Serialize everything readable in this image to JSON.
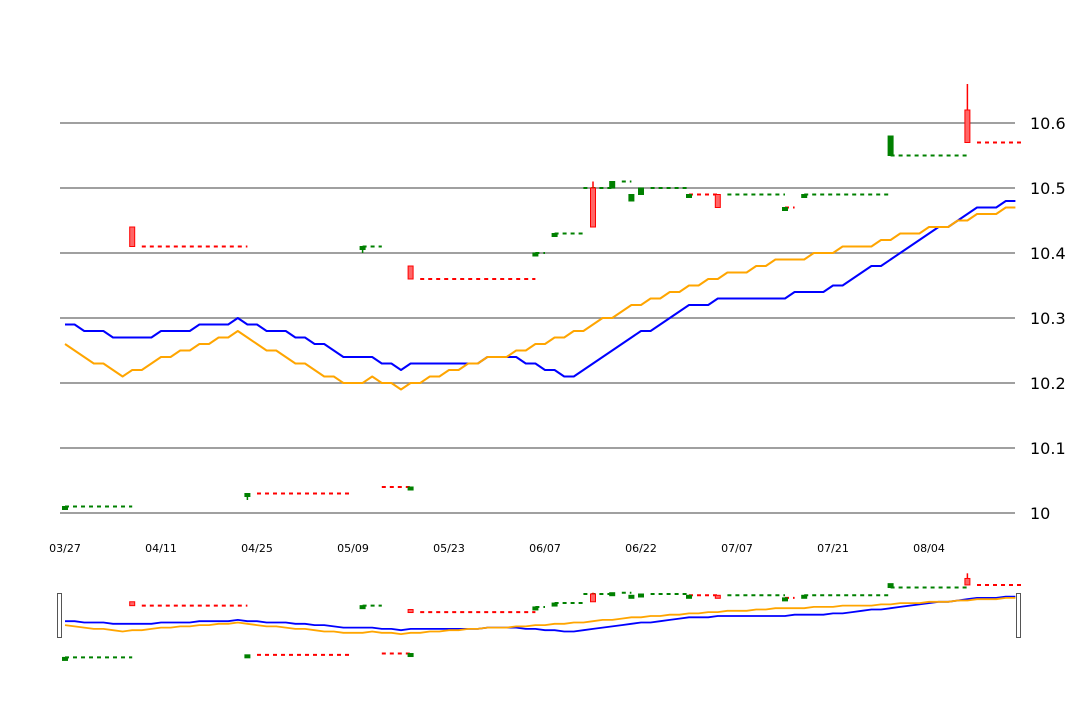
{
  "chart_data": {
    "type": "candlestick",
    "title": "",
    "xlabel": "",
    "ylabel": "",
    "ylim": [
      10.0,
      10.6
    ],
    "y_ticks": [
      "10",
      "10.1",
      "10.2",
      "10.3",
      "10.4",
      "10.5",
      "10.6"
    ],
    "y_tick_values": [
      10.0,
      10.1,
      10.2,
      10.3,
      10.4,
      10.5,
      10.6
    ],
    "x_tick_labels": [
      "03/27",
      "04/11",
      "04/25",
      "05/09",
      "05/23",
      "06/07",
      "06/22",
      "07/07",
      "07/21",
      "08/04"
    ],
    "x_tick_index": [
      0,
      10,
      20,
      30,
      40,
      50,
      60,
      70,
      80,
      90
    ],
    "n_days": 100,
    "grid": true,
    "colors": {
      "grid": "#808080",
      "up": "#008000",
      "down": "#ff0000",
      "ma_short": "#0000ff",
      "ma_long": "#ffa500",
      "navigator_border": "#555555"
    },
    "candles": [
      {
        "i": 0,
        "open": 10.01,
        "close": 10.01,
        "high": 10.01,
        "low": 10.01
      },
      {
        "i": 7,
        "open": 10.44,
        "close": 10.41,
        "high": 10.44,
        "low": 10.41
      },
      {
        "i": 19,
        "open": 10.03,
        "close": 10.03,
        "high": 10.03,
        "low": 10.02
      },
      {
        "i": 31,
        "open": 10.41,
        "close": 10.41,
        "high": 10.41,
        "low": 10.4
      },
      {
        "i": 36,
        "open": 10.04,
        "close": 10.04,
        "high": 10.04,
        "low": 10.04
      },
      {
        "i": 36,
        "open": 10.38,
        "close": 10.36,
        "high": 10.38,
        "low": 10.36
      },
      {
        "i": 49,
        "open": 10.4,
        "close": 10.4,
        "high": 10.4,
        "low": 10.4
      },
      {
        "i": 51,
        "open": 10.43,
        "close": 10.43,
        "high": 10.43,
        "low": 10.43
      },
      {
        "i": 55,
        "open": 10.5,
        "close": 10.44,
        "high": 10.51,
        "low": 10.44
      },
      {
        "i": 57,
        "open": 10.5,
        "close": 10.51,
        "high": 10.51,
        "low": 10.5
      },
      {
        "i": 59,
        "open": 10.48,
        "close": 10.49,
        "high": 10.49,
        "low": 10.48
      },
      {
        "i": 60,
        "open": 10.49,
        "close": 10.5,
        "high": 10.5,
        "low": 10.49
      },
      {
        "i": 65,
        "open": 10.49,
        "close": 10.49,
        "high": 10.49,
        "low": 10.49
      },
      {
        "i": 68,
        "open": 10.49,
        "close": 10.47,
        "high": 10.49,
        "low": 10.47
      },
      {
        "i": 75,
        "open": 10.47,
        "close": 10.47,
        "high": 10.47,
        "low": 10.47
      },
      {
        "i": 77,
        "open": 10.49,
        "close": 10.49,
        "high": 10.49,
        "low": 10.49
      },
      {
        "i": 86,
        "open": 10.55,
        "close": 10.58,
        "high": 10.58,
        "low": 10.55
      },
      {
        "i": 94,
        "open": 10.62,
        "close": 10.57,
        "high": 10.66,
        "low": 10.57
      }
    ],
    "dashed_levels": [
      {
        "from": 0,
        "to": 7,
        "value": 10.01,
        "color": "up"
      },
      {
        "from": 8,
        "to": 19,
        "value": 10.41,
        "color": "down"
      },
      {
        "from": 20,
        "to": 30,
        "value": 10.03,
        "color": "down"
      },
      {
        "from": 31,
        "to": 33,
        "value": 10.41,
        "color": "up"
      },
      {
        "from": 33,
        "to": 36,
        "value": 10.04,
        "color": "down"
      },
      {
        "from": 37,
        "to": 49,
        "value": 10.36,
        "color": "down"
      },
      {
        "from": 49,
        "to": 50,
        "value": 10.4,
        "color": "up"
      },
      {
        "from": 51,
        "to": 54,
        "value": 10.43,
        "color": "up"
      },
      {
        "from": 54,
        "to": 57,
        "value": 10.5,
        "color": "up"
      },
      {
        "from": 58,
        "to": 59,
        "value": 10.51,
        "color": "up"
      },
      {
        "from": 61,
        "to": 65,
        "value": 10.5,
        "color": "up"
      },
      {
        "from": 65,
        "to": 68,
        "value": 10.49,
        "color": "down"
      },
      {
        "from": 69,
        "to": 75,
        "value": 10.49,
        "color": "up"
      },
      {
        "from": 75,
        "to": 76,
        "value": 10.47,
        "color": "down"
      },
      {
        "from": 77,
        "to": 86,
        "value": 10.49,
        "color": "up"
      },
      {
        "from": 86,
        "to": 94,
        "value": 10.55,
        "color": "up"
      },
      {
        "from": 95,
        "to": 100,
        "value": 10.57,
        "color": "down"
      }
    ],
    "series": [
      {
        "name": "ma_short",
        "color_key": "ma_short",
        "values": [
          10.29,
          10.29,
          10.28,
          10.28,
          10.28,
          10.27,
          10.27,
          10.27,
          10.27,
          10.27,
          10.28,
          10.28,
          10.28,
          10.28,
          10.29,
          10.29,
          10.29,
          10.29,
          10.3,
          10.29,
          10.29,
          10.28,
          10.28,
          10.28,
          10.27,
          10.27,
          10.26,
          10.26,
          10.25,
          10.24,
          10.24,
          10.24,
          10.24,
          10.23,
          10.23,
          10.22,
          10.23,
          10.23,
          10.23,
          10.23,
          10.23,
          10.23,
          10.23,
          10.23,
          10.24,
          10.24,
          10.24,
          10.24,
          10.23,
          10.23,
          10.22,
          10.22,
          10.21,
          10.21,
          10.22,
          10.23,
          10.24,
          10.25,
          10.26,
          10.27,
          10.28,
          10.28,
          10.29,
          10.3,
          10.31,
          10.32,
          10.32,
          10.32,
          10.33,
          10.33,
          10.33,
          10.33,
          10.33,
          10.33,
          10.33,
          10.33,
          10.34,
          10.34,
          10.34,
          10.34,
          10.35,
          10.35,
          10.36,
          10.37,
          10.38,
          10.38,
          10.39,
          10.4,
          10.41,
          10.42,
          10.43,
          10.44,
          10.44,
          10.45,
          10.46,
          10.47,
          10.47,
          10.47,
          10.48,
          10.48
        ]
      },
      {
        "name": "ma_long",
        "color_key": "ma_long",
        "values": [
          10.26,
          10.25,
          10.24,
          10.23,
          10.23,
          10.22,
          10.21,
          10.22,
          10.22,
          10.23,
          10.24,
          10.24,
          10.25,
          10.25,
          10.26,
          10.26,
          10.27,
          10.27,
          10.28,
          10.27,
          10.26,
          10.25,
          10.25,
          10.24,
          10.23,
          10.23,
          10.22,
          10.21,
          10.21,
          10.2,
          10.2,
          10.2,
          10.21,
          10.2,
          10.2,
          10.19,
          10.2,
          10.2,
          10.21,
          10.21,
          10.22,
          10.22,
          10.23,
          10.23,
          10.24,
          10.24,
          10.24,
          10.25,
          10.25,
          10.26,
          10.26,
          10.27,
          10.27,
          10.28,
          10.28,
          10.29,
          10.3,
          10.3,
          10.31,
          10.32,
          10.32,
          10.33,
          10.33,
          10.34,
          10.34,
          10.35,
          10.35,
          10.36,
          10.36,
          10.37,
          10.37,
          10.37,
          10.38,
          10.38,
          10.39,
          10.39,
          10.39,
          10.39,
          10.4,
          10.4,
          10.4,
          10.41,
          10.41,
          10.41,
          10.41,
          10.42,
          10.42,
          10.43,
          10.43,
          10.43,
          10.44,
          10.44,
          10.44,
          10.45,
          10.45,
          10.46,
          10.46,
          10.46,
          10.47,
          10.47
        ]
      }
    ]
  }
}
